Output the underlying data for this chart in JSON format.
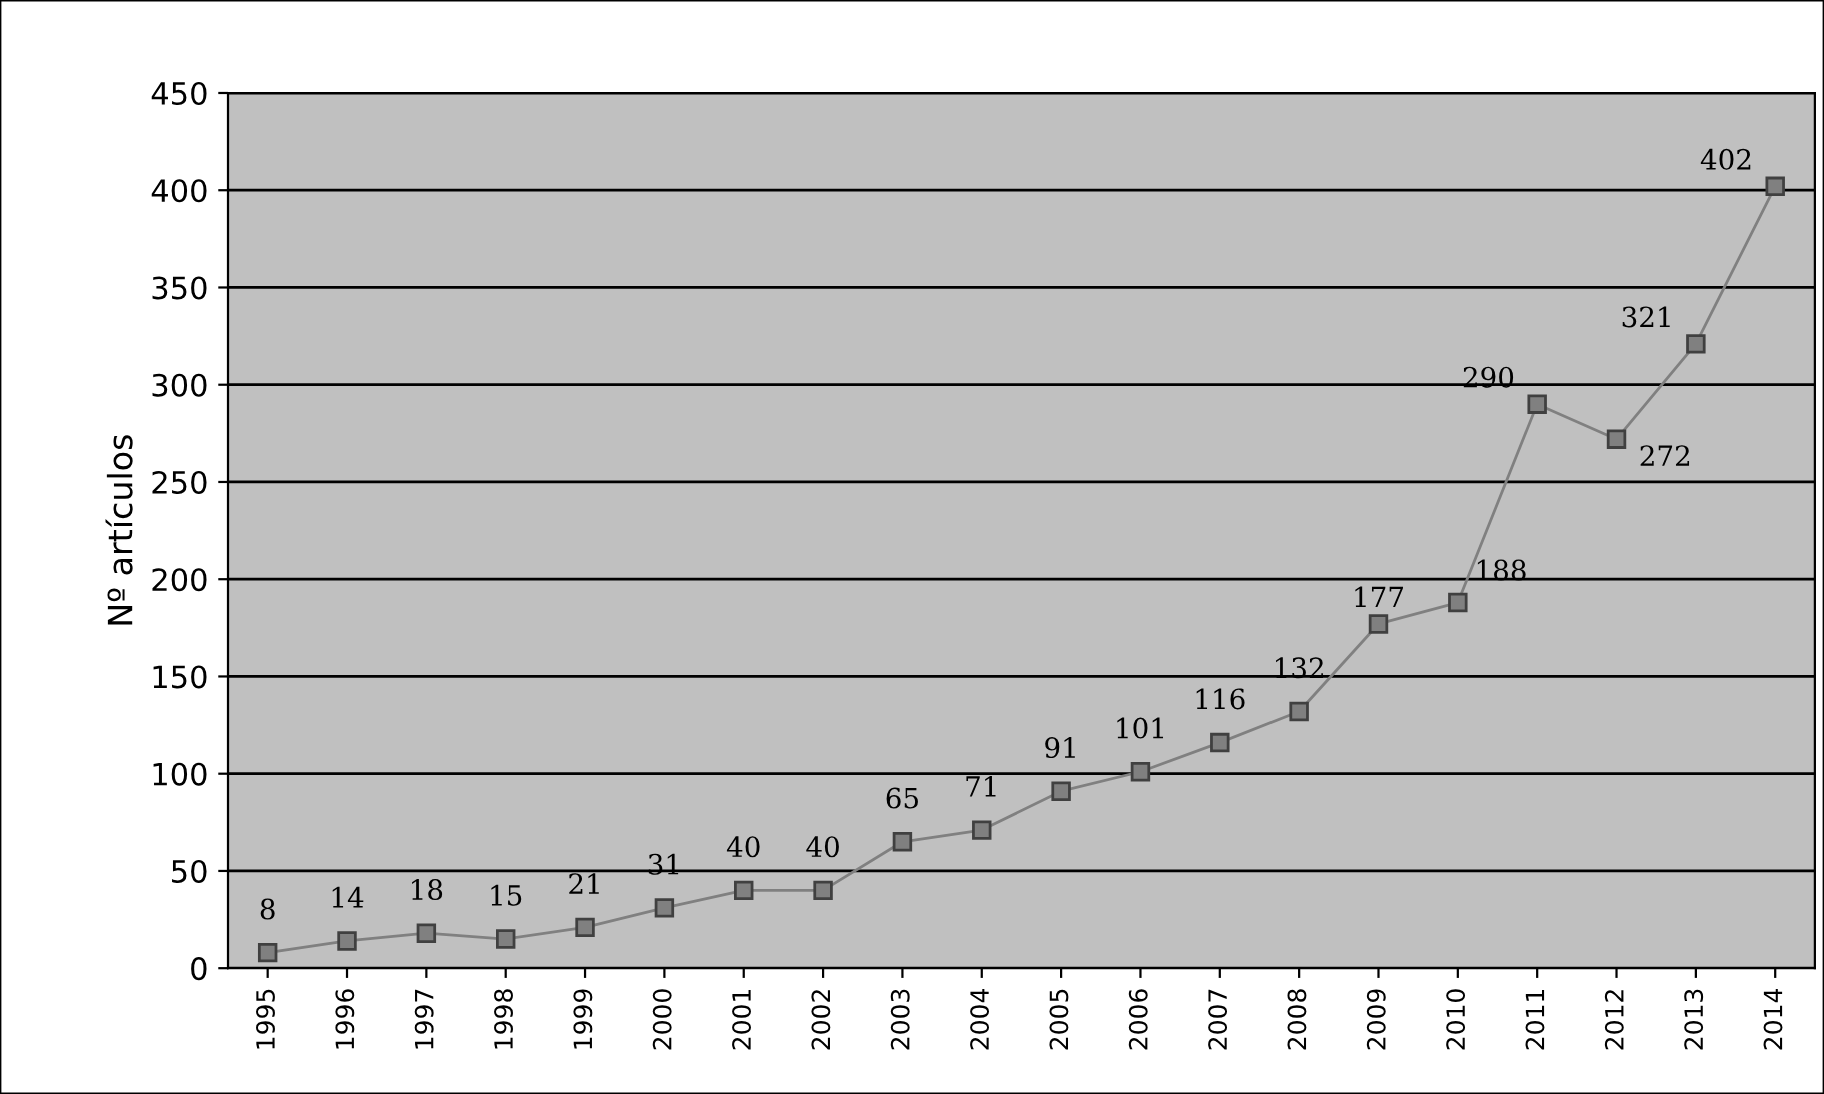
{
  "chart_data": {
    "type": "line",
    "ylabel": "Nº artículos",
    "categories": [
      "1995",
      "1996",
      "1997",
      "1998",
      "1999",
      "2000",
      "2001",
      "2002",
      "2003",
      "2004",
      "2005",
      "2006",
      "2007",
      "2008",
      "2009",
      "2010",
      "2011",
      "2012",
      "2013",
      "2014"
    ],
    "series": [
      {
        "color": "#808080",
        "values": [
          8,
          14,
          18,
          15,
          21,
          31,
          40,
          40,
          65,
          71,
          91,
          101,
          116,
          132,
          177,
          188,
          290,
          272,
          321,
          402
        ]
      }
    ],
    "ylim": [
      0,
      450
    ],
    "yticks": [
      0,
      50,
      100,
      150,
      200,
      250,
      300,
      350,
      400,
      450
    ],
    "grid": "y",
    "marker": "square",
    "data_labels": true,
    "legend": false
  }
}
